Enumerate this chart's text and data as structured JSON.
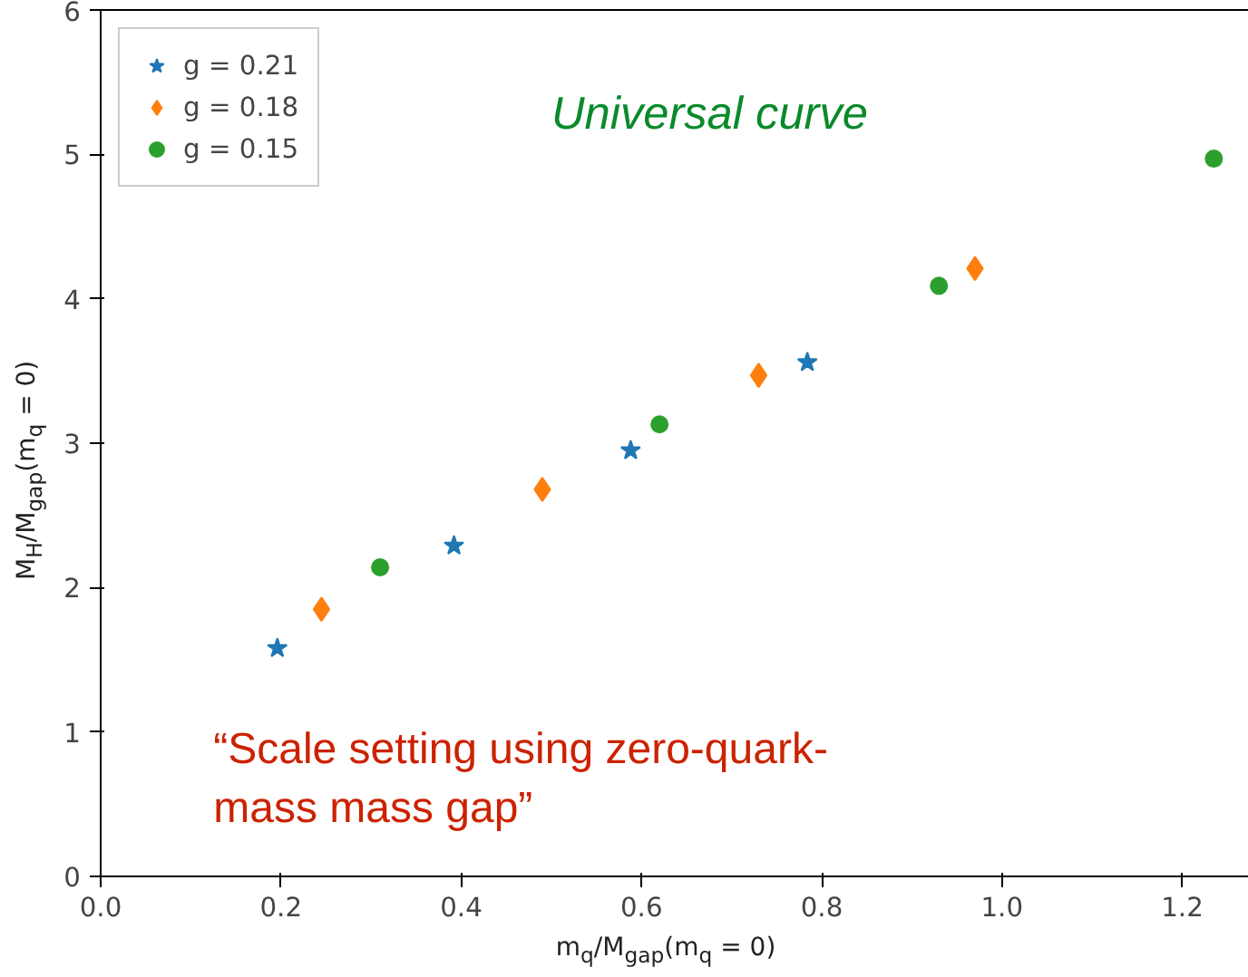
{
  "chart_data": {
    "type": "scatter",
    "xlabel": "m$_{q}$/M$_{gap}$(m$_{q}$ = 0)",
    "ylabel": "M$_{H}$/M$_{gap}$(m$_{q}$ = 0)",
    "xlim": [
      0,
      1.29
    ],
    "ylim": [
      0,
      6
    ],
    "xticks": [
      {
        "value": 0,
        "label": "0.0"
      },
      {
        "value": 0.2,
        "label": "0.2"
      },
      {
        "value": 0.4,
        "label": "0.4"
      },
      {
        "value": 0.6,
        "label": "0.6"
      },
      {
        "value": 0.8,
        "label": "0.8"
      },
      {
        "value": 1.0,
        "label": "1.0"
      },
      {
        "value": 1.2,
        "label": "1.2"
      }
    ],
    "yticks": [
      0,
      1,
      2,
      3,
      4,
      5,
      6
    ],
    "grid": false,
    "legend": "top left",
    "annotations": [
      "Universal curve",
      "“Scale setting using zero-quark-\nmass mass gap”"
    ],
    "series": [
      {
        "name": "g = 0.21",
        "color": "#1f77b4",
        "marker": "star",
        "x": [
          0.196,
          0.392,
          0.588,
          0.784
        ],
        "values": [
          1.58,
          2.29,
          2.95,
          3.56
        ]
      },
      {
        "name": "g = 0.18",
        "color": "#ff7f0e",
        "marker": "diamond",
        "x": [
          0.245,
          0.49,
          0.73,
          0.97
        ],
        "values": [
          1.85,
          2.68,
          3.47,
          4.21
        ]
      },
      {
        "name": "g = 0.15",
        "color": "#2ca02c",
        "marker": "circle",
        "x": [
          0.31,
          0.62,
          0.93,
          1.235
        ],
        "values": [
          2.14,
          3.13,
          4.09,
          4.97
        ]
      }
    ]
  }
}
